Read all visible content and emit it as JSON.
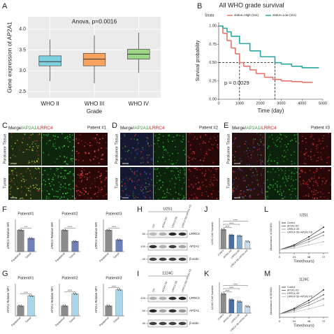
{
  "panel_labels": [
    "A",
    "B",
    "C",
    "D",
    "E",
    "F",
    "G",
    "H",
    "I",
    "J",
    "K",
    "L",
    "M"
  ],
  "chart_data": [
    {
      "type": "box",
      "title": "Anova, p=0.0016",
      "x_label": "Grade",
      "y_label": "Gene expression of AP2A1",
      "categories": [
        "WHO II",
        "WHO III",
        "WHO IV"
      ],
      "boxes": [
        {
          "color": "#7fd0df",
          "whisker_low": 2.75,
          "q1": 3.12,
          "median": 3.22,
          "q3": 3.36,
          "whisker_high": 3.75
        },
        {
          "color": "#f7a35f",
          "whisker_low": 2.7,
          "q1": 3.12,
          "median": 3.28,
          "q3": 3.42,
          "whisker_high": 3.85
        },
        {
          "color": "#9dd486",
          "whisker_low": 2.95,
          "q1": 3.28,
          "median": 3.4,
          "q3": 3.52,
          "whisker_high": 3.92
        }
      ],
      "ylim": [
        2.35,
        4.3
      ],
      "yticks": [
        2.5,
        {
          "value": 3,
          "label": "3.0"
        },
        3.5,
        {
          "value": 4,
          "label": "4.0"
        }
      ],
      "grid": true
    },
    {
      "type": "line",
      "step": true,
      "title": "All WHO grade survival",
      "x_label": "Time (day)",
      "y_label": "Survival probability",
      "legend_title": "Strata",
      "legend": "top",
      "annotation": "p = 0.0029",
      "series": [
        {
          "name": "status=High (111)",
          "color": "#e8736b",
          "x": [
            0,
            200,
            400,
            600,
            800,
            1000,
            1200,
            1500,
            1800,
            2200,
            2600,
            3000,
            3500,
            4000,
            4500
          ],
          "values": [
            1,
            0.9,
            0.8,
            0.7,
            0.62,
            0.5,
            0.45,
            0.4,
            0.35,
            0.3,
            0.27,
            0.25,
            0.24,
            0.23,
            0.23
          ]
        },
        {
          "name": "status=Low (111)",
          "color": "#2aa7a0",
          "x": [
            0,
            200,
            400,
            600,
            1000,
            1500,
            2000,
            2700,
            3000,
            3500,
            4000,
            4800
          ],
          "values": [
            1,
            0.97,
            0.92,
            0.86,
            0.76,
            0.66,
            0.58,
            0.5,
            0.48,
            0.45,
            0.43,
            0.43
          ]
        }
      ],
      "xlim": [
        0,
        5000
      ],
      "xticks": [
        0,
        1000,
        2000,
        3000,
        4000,
        5000
      ],
      "ylim": [
        0,
        1.05
      ],
      "yticks": [
        {
          "value": 0,
          "label": "0.00"
        },
        0.25,
        {
          "value": 0.5,
          "label": "0.50"
        },
        0.75,
        {
          "value": 1,
          "label": "1.00"
        }
      ],
      "reference_y": 0.5,
      "reference_x": [
        1000,
        2700
      ]
    },
    {
      "type": "bar",
      "title": "Patient#1",
      "y_label": "LRRC4 Relative MFI",
      "categories": [
        "Paratumor",
        "Tumor"
      ],
      "values": [
        1,
        0.62
      ],
      "colors": [
        "#8c8c8c",
        "#6f7fb8"
      ],
      "ylim": [
        0,
        1.5
      ],
      "significance": [
        "***"
      ]
    },
    {
      "type": "bar",
      "title": "Patient#2",
      "y_label": "LRRC4 Relative MFI",
      "categories": [
        "Paratumor",
        "Tumor"
      ],
      "values": [
        1,
        0.48
      ],
      "colors": [
        "#8c8c8c",
        "#6f7fb8"
      ],
      "ylim": [
        0,
        1.5
      ],
      "significance": [
        "****"
      ]
    },
    {
      "type": "bar",
      "title": "Patient#3",
      "y_label": "LRRC4 Relative MFI",
      "categories": [
        "Paratumor",
        "Tumor"
      ],
      "values": [
        1,
        0.55
      ],
      "colors": [
        "#8c8c8c",
        "#6f7fb8"
      ],
      "ylim": [
        0,
        1.5
      ],
      "significance": [
        "****"
      ]
    },
    {
      "type": "bar",
      "title": "Patient#1",
      "y_label": "AP2A1 Relative MFI",
      "categories": [
        "Paratumor",
        "Tumor"
      ],
      "values": [
        1,
        2.0
      ],
      "colors": [
        "#8c8c8c",
        "#a9d6e8"
      ],
      "ylim": [
        0,
        3.2
      ],
      "significance": [
        "****"
      ]
    },
    {
      "type": "bar",
      "title": "Patient#2",
      "y_label": "AP2A1 Relative MFI",
      "categories": [
        "Paratumor",
        "Tumor"
      ],
      "values": [
        1,
        2.2
      ],
      "colors": [
        "#8c8c8c",
        "#a9d6e8"
      ],
      "ylim": [
        0,
        3.2
      ],
      "significance": [
        "****"
      ]
    },
    {
      "type": "bar",
      "title": "Patient#3",
      "y_label": "AP2A1 Relative MFI",
      "categories": [
        "Paratumor",
        "Tumor"
      ],
      "values": [
        1,
        2.6
      ],
      "colors": [
        "#8c8c8c",
        "#a9d6e8"
      ],
      "ylim": [
        0,
        3.2
      ],
      "significance": [
        "****"
      ]
    },
    {
      "type": "bar",
      "y_label": "U251  Cell Number",
      "categories": [
        "Control",
        "AP2A1 KD",
        "LRRC4 OE",
        "LRRC4 OE+AP2A1 KD"
      ],
      "values": [
        1,
        0.72,
        0.68,
        0.38
      ],
      "colors": [
        "#8c8c8c",
        "#4a6fa5",
        "#7fa8cf",
        "#c8dced"
      ],
      "ylim": [
        0,
        1.6
      ],
      "significance": [
        "****",
        "****",
        "****"
      ]
    },
    {
      "type": "bar",
      "y_label": "1124C  Cell Number",
      "categories": [
        "Control",
        "AP2A1 KD",
        "LRRC4 OE",
        "LRRC4 OE+AP2A1 KD"
      ],
      "values": [
        1,
        0.7,
        0.6,
        0.35
      ],
      "colors": [
        "#8c8c8c",
        "#4a6fa5",
        "#7fa8cf",
        "#c8dced"
      ],
      "ylim": [
        0,
        1.6
      ],
      "significance": [
        "****",
        "****",
        "****"
      ]
    },
    {
      "type": "line",
      "title": "U251",
      "x_label": "Time(hours)",
      "y_label": "Absorbance of OD450",
      "legend": "top-left",
      "x": [
        0,
        24,
        48,
        72
      ],
      "xlim": [
        0,
        80
      ],
      "xticks": [
        0,
        24,
        48,
        72
      ],
      "ylim": [
        0,
        2
      ],
      "series": [
        {
          "name": "Control",
          "color": "#222222",
          "values": [
            0.2,
            0.5,
            1.0,
            1.6
          ]
        },
        {
          "name": "AP2A1 KD",
          "color": "#555555",
          "values": [
            0.2,
            0.45,
            0.85,
            1.3
          ]
        },
        {
          "name": "LRRC4 OE",
          "color": "#888888",
          "values": [
            0.2,
            0.4,
            0.7,
            1.1
          ]
        },
        {
          "name": "LRRC4 OE+AP2A1 KD",
          "color": "#bbbbbb",
          "values": [
            0.2,
            0.3,
            0.5,
            0.7
          ]
        }
      ]
    },
    {
      "type": "line",
      "title": "1124C",
      "x_label": "Time(hours)",
      "y_label": "Absorbance of OD450",
      "legend": "top-left",
      "x": [
        0,
        24,
        48,
        72
      ],
      "xlim": [
        0,
        80
      ],
      "xticks": [
        0,
        24,
        48,
        72
      ],
      "ylim": [
        0,
        2
      ],
      "series": [
        {
          "name": "Control",
          "color": "#222222",
          "values": [
            0.2,
            0.55,
            1.05,
            1.7
          ]
        },
        {
          "name": "AP2A1 KD",
          "color": "#555555",
          "values": [
            0.2,
            0.5,
            0.9,
            1.4
          ]
        },
        {
          "name": "LRRC4 OE",
          "color": "#888888",
          "values": [
            0.2,
            0.42,
            0.75,
            1.15
          ]
        },
        {
          "name": "LRRC4 OE+AP2A1 KD",
          "color": "#bbbbbb",
          "values": [
            0.2,
            0.32,
            0.52,
            0.75
          ]
        }
      ]
    }
  ],
  "images": [
    {
      "stain": [
        "Merge/",
        "AP2A1",
        "/LRRC4"
      ],
      "patient": "Patient #1",
      "rows": [
        "Paratumor Tissue",
        "Tumor"
      ]
    },
    {
      "stain": [
        "Merge/",
        "AP2A1",
        "/LRRC4"
      ],
      "patient": "Patient #2",
      "rows": [
        "Paratumor Tissue",
        "Tumor"
      ]
    },
    {
      "stain": [
        "Merge/",
        "AP2A1",
        "/LRRC4"
      ],
      "patient": "Patient #3",
      "rows": [
        "Paratumor Tissue",
        "Tumor"
      ]
    }
  ],
  "blots": [
    {
      "cell_line": "U251",
      "lanes": [
        "Ctrl",
        "AP2A1 KD",
        "LRRC4 OE",
        "LRRC4 OE+AP2A1 KD"
      ],
      "proteins": [
        "LRRC4",
        "AP2A1",
        "β-actin"
      ],
      "markers": [
        "60",
        "100",
        "40"
      ]
    },
    {
      "cell_line": "1124C",
      "lanes": [
        "Ctrl",
        "AP2A1 KD",
        "LRRC4 OE",
        "LRRC4 OE+AP2A1 KD"
      ],
      "proteins": [
        "LRRC4",
        "AP2A1",
        "β-actin"
      ],
      "markers": [
        "100",
        "60",
        "40"
      ]
    }
  ]
}
